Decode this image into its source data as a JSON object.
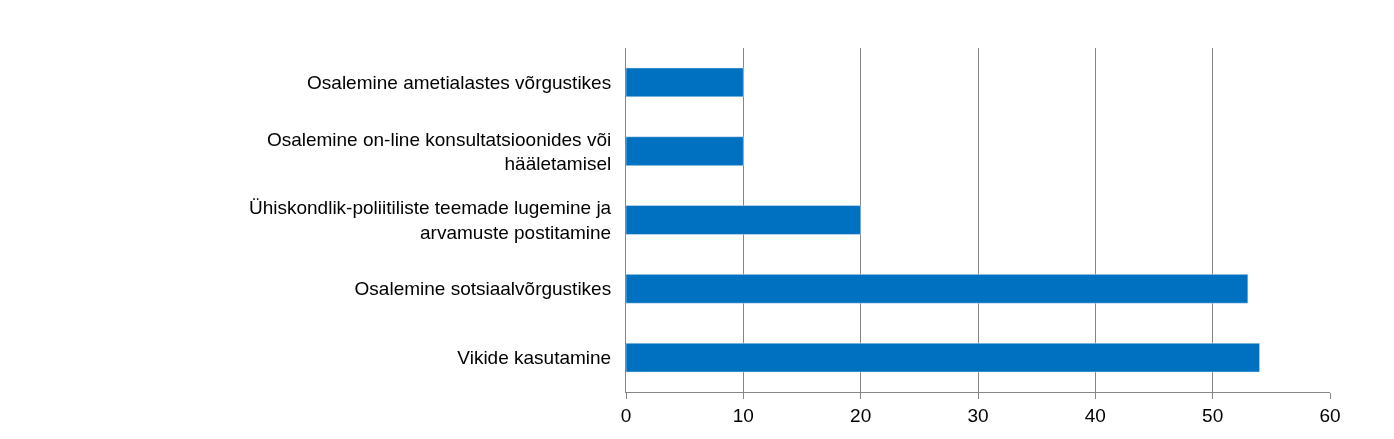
{
  "chart_data": {
    "type": "bar",
    "orientation": "horizontal",
    "categories": [
      "Osalemine ametialastes võrgustikes",
      "Osalemine on-line konsultatsioonides või hääletamisel",
      "Ühiskondlik-poliitiliste teemade lugemine ja arvamuste postitamine",
      "Osalemine sotsiaalvõrgustikes",
      "Vikide kasutamine"
    ],
    "values": [
      10,
      10,
      20,
      53,
      54
    ],
    "color": "#0070c0",
    "xlim": [
      0,
      60
    ],
    "xticks": [
      0,
      10,
      20,
      30,
      40,
      50,
      60
    ],
    "grid": "x"
  }
}
